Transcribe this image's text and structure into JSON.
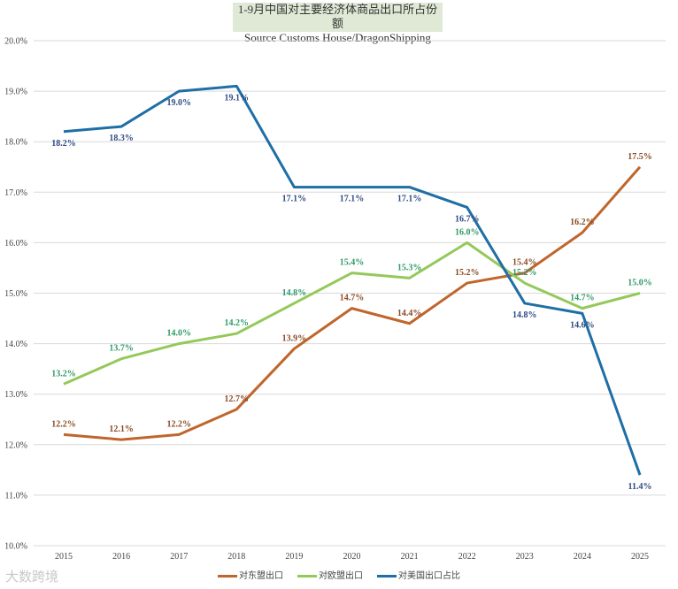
{
  "chart_data": {
    "type": "line",
    "title": "1-9月中国对主要经济体商品出口所占份额",
    "subtitle": "Source Customs House/DragonShipping",
    "x": [
      "2015",
      "2016",
      "2017",
      "2018",
      "2019",
      "2020",
      "2021",
      "2022",
      "2023",
      "2024",
      "2025"
    ],
    "ylim": [
      10,
      20
    ],
    "yticks": [
      "10.0%",
      "11.0%",
      "12.0%",
      "13.0%",
      "14.0%",
      "15.0%",
      "16.0%",
      "17.0%",
      "18.0%",
      "19.0%",
      "20.0%"
    ],
    "grid": true,
    "legend_position": "bottom",
    "series": [
      {
        "name": "对东盟出口",
        "color": "#c0652b",
        "label_color": "#8a4a22",
        "values": [
          12.2,
          12.1,
          12.2,
          12.7,
          13.9,
          14.7,
          14.4,
          15.2,
          15.4,
          16.2,
          17.5
        ]
      },
      {
        "name": "对欧盟出口",
        "color": "#94c95a",
        "label_color": "#2e9a68",
        "values": [
          13.2,
          13.7,
          14.0,
          14.2,
          14.8,
          15.4,
          15.3,
          16.0,
          15.2,
          14.7,
          15.0
        ]
      },
      {
        "name": "对美国出口占比",
        "color": "#1f6ea6",
        "label_color": "#2f4b84",
        "values": [
          18.2,
          18.3,
          19.0,
          19.1,
          17.1,
          17.1,
          17.1,
          16.7,
          14.8,
          14.6,
          11.4
        ]
      }
    ]
  },
  "watermark": "大数跨境"
}
